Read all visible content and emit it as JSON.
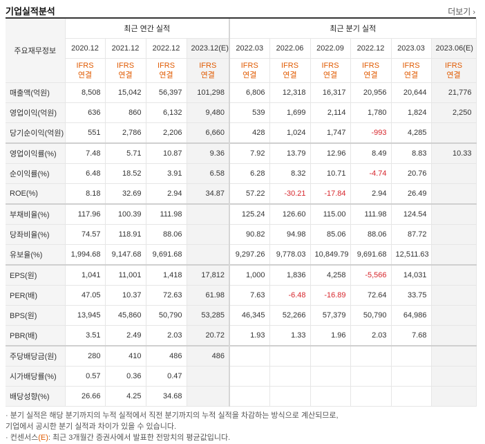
{
  "header": {
    "title": "기업실적분석",
    "more_label": "더보기"
  },
  "table": {
    "corner_label": "주요재무정보",
    "annual_group_label": "최근 연간 실적",
    "quarterly_group_label": "최근 분기 실적",
    "periods": [
      "2020.12",
      "2021.12",
      "2022.12",
      "2023.12(E)",
      "2022.03",
      "2022.06",
      "2022.09",
      "2022.12",
      "2023.03",
      "2023.06(E)"
    ],
    "ifrs_line1": "IFRS",
    "ifrs_line2": "연결",
    "rows": [
      {
        "label": "매출액(억원)",
        "values": [
          "8,508",
          "15,042",
          "56,397",
          "101,298",
          "6,806",
          "12,318",
          "16,317",
          "20,956",
          "20,644",
          "21,776"
        ]
      },
      {
        "label": "영업이익(억원)",
        "values": [
          "636",
          "860",
          "6,132",
          "9,480",
          "539",
          "1,699",
          "2,114",
          "1,780",
          "1,824",
          "2,250"
        ]
      },
      {
        "label": "당기순이익(억원)",
        "values": [
          "551",
          "2,786",
          "2,206",
          "6,660",
          "428",
          "1,024",
          "1,747",
          "-993",
          "4,285",
          ""
        ]
      },
      {
        "label": "영업이익률(%)",
        "values": [
          "7.48",
          "5.71",
          "10.87",
          "9.36",
          "7.92",
          "13.79",
          "12.96",
          "8.49",
          "8.83",
          "10.33"
        ]
      },
      {
        "label": "순이익률(%)",
        "values": [
          "6.48",
          "18.52",
          "3.91",
          "6.58",
          "6.28",
          "8.32",
          "10.71",
          "-4.74",
          "20.76",
          ""
        ]
      },
      {
        "label": "ROE(%)",
        "values": [
          "8.18",
          "32.69",
          "2.94",
          "34.87",
          "57.22",
          "-30.21",
          "-17.84",
          "2.94",
          "26.49",
          ""
        ]
      },
      {
        "label": "부채비율(%)",
        "values": [
          "117.96",
          "100.39",
          "111.98",
          "",
          "125.24",
          "126.60",
          "115.00",
          "111.98",
          "124.54",
          ""
        ]
      },
      {
        "label": "당좌비율(%)",
        "values": [
          "74.57",
          "118.91",
          "88.06",
          "",
          "90.82",
          "94.98",
          "85.06",
          "88.06",
          "87.72",
          ""
        ]
      },
      {
        "label": "유보율(%)",
        "values": [
          "1,994.68",
          "9,147.68",
          "9,691.68",
          "",
          "9,297.26",
          "9,778.03",
          "10,849.79",
          "9,691.68",
          "12,511.63",
          ""
        ]
      },
      {
        "label": "EPS(원)",
        "values": [
          "1,041",
          "11,001",
          "1,418",
          "17,812",
          "1,000",
          "1,836",
          "4,258",
          "-5,566",
          "14,031",
          ""
        ]
      },
      {
        "label": "PER(배)",
        "values": [
          "47.05",
          "10.37",
          "72.63",
          "61.98",
          "7.63",
          "-6.48",
          "-16.89",
          "72.64",
          "33.75",
          ""
        ]
      },
      {
        "label": "BPS(원)",
        "values": [
          "13,945",
          "45,860",
          "50,790",
          "53,285",
          "46,345",
          "52,266",
          "57,379",
          "50,790",
          "64,986",
          ""
        ]
      },
      {
        "label": "PBR(배)",
        "values": [
          "3.51",
          "2.49",
          "2.03",
          "20.72",
          "1.93",
          "1.33",
          "1.96",
          "2.03",
          "7.68",
          ""
        ]
      },
      {
        "label": "주당배당금(원)",
        "values": [
          "280",
          "410",
          "486",
          "486",
          "",
          "",
          "",
          "",
          "",
          ""
        ]
      },
      {
        "label": "시가배당률(%)",
        "values": [
          "0.57",
          "0.36",
          "0.47",
          "",
          "",
          "",
          "",
          "",
          "",
          ""
        ]
      },
      {
        "label": "배당성향(%)",
        "values": [
          "26.66",
          "4.25",
          "34.68",
          "",
          "",
          "",
          "",
          "",
          "",
          ""
        ]
      }
    ]
  },
  "footnotes": {
    "line1": "· 분기 실적은 해당 분기까지의 누적 실적에서 직전 분기까지의 누적 실적을 차감하는 방식으로 계산되므로,",
    "line2": "  기업에서 공시한 분기 실적과 차이가 있을 수 있습니다.",
    "line3_prefix": "· 컨센서스",
    "line3_mark": "(E)",
    "line3_suffix": ": 최근 3개월간 증권사에서 발표한 전망치의 평균값입니다."
  },
  "colors": {
    "ifrs": "#e05a00",
    "negative": "#d7262c",
    "header_bg": "#f5f5f5",
    "estimate_bg": "#f3f3f3"
  }
}
